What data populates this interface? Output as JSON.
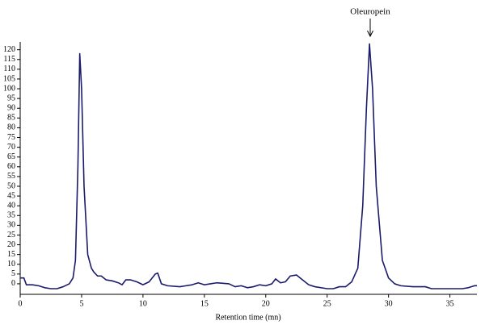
{
  "chart_data": {
    "type": "line",
    "x_label": "Retention time (mn)",
    "annotation": "Oleuropein",
    "color": "#1b1b6b",
    "grid": false,
    "x": [
      0,
      0.3,
      0.5,
      1,
      1.5,
      2,
      2.5,
      3,
      3.5,
      4,
      4.3,
      4.5,
      4.7,
      4.85,
      5,
      5.2,
      5.5,
      5.8,
      6,
      6.3,
      6.6,
      7,
      7.5,
      8,
      8.3,
      8.6,
      9,
      9.5,
      10,
      10.5,
      11,
      11.2,
      11.5,
      12,
      13,
      13.5,
      14,
      14.5,
      15,
      15.5,
      16,
      17,
      17.5,
      18,
      18.5,
      19,
      19.5,
      20,
      20.5,
      20.8,
      21.2,
      21.6,
      22,
      22.5,
      23,
      23.5,
      24,
      25,
      25.5,
      26,
      26.5,
      27,
      27.5,
      27.9,
      28.2,
      28.45,
      28.7,
      29,
      29.5,
      30,
      30.5,
      31,
      32,
      33,
      33.5,
      35,
      36,
      36.5,
      37,
      37.2
    ],
    "values": [
      3,
      3,
      -0.5,
      -0.5,
      -1,
      -2,
      -2.5,
      -2.5,
      -1.5,
      0,
      3,
      12,
      60,
      118,
      100,
      50,
      15,
      8,
      6,
      4,
      4,
      2,
      1.5,
      0.5,
      -0.5,
      2,
      2,
      1,
      -0.5,
      1,
      5,
      5.5,
      0,
      -1,
      -1.5,
      -1,
      -0.5,
      0.5,
      -0.5,
      0,
      0.5,
      0,
      -1.5,
      -1,
      -2,
      -1.5,
      -0.5,
      -1,
      0,
      2.5,
      0.5,
      1,
      4,
      4.5,
      2,
      -0.5,
      -1.5,
      -2.5,
      -2.5,
      -1.5,
      -1.5,
      1,
      8,
      40,
      90,
      123,
      100,
      50,
      12,
      3,
      0,
      -1,
      -1.5,
      -1.5,
      -2.5,
      -2.5,
      -2.5,
      -2,
      -1,
      -1
    ],
    "xlim": [
      0,
      37.2
    ],
    "ylim": [
      -5.4,
      124
    ],
    "xticks": [
      0,
      5,
      10,
      15,
      20,
      25,
      30,
      35
    ],
    "yticks": [
      0,
      5,
      10,
      15,
      20,
      25,
      30,
      35,
      40,
      45,
      50,
      55,
      60,
      65,
      70,
      75,
      80,
      85,
      90,
      95,
      100,
      105,
      110,
      115,
      120
    ]
  }
}
